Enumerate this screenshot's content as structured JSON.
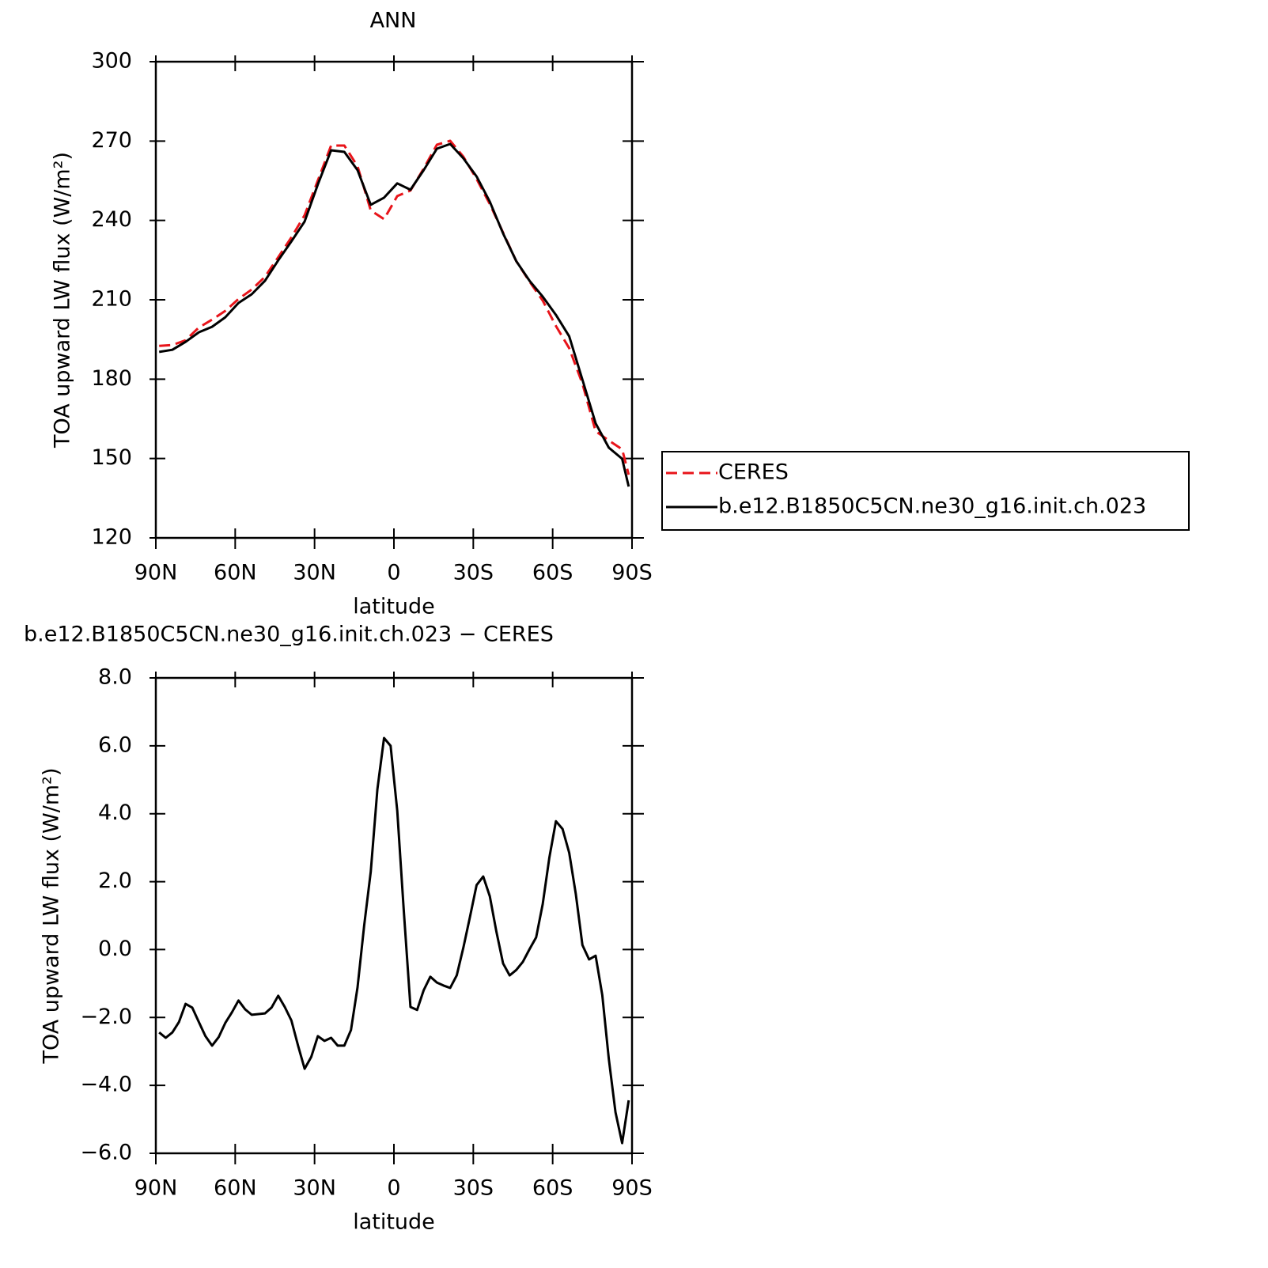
{
  "chart_data": [
    {
      "type": "line",
      "title": "ANN",
      "xlabel": "latitude",
      "ylabel": "TOA upward LW flux (W/m²)",
      "x": [
        88.75,
        83.75,
        78.75,
        73.75,
        68.75,
        63.75,
        58.75,
        53.75,
        48.75,
        43.75,
        38.75,
        33.75,
        28.75,
        23.75,
        18.75,
        13.75,
        8.75,
        3.75,
        -1.25,
        -6.25,
        -11.25,
        -16.25,
        -21.25,
        -26.25,
        -31.25,
        -36.25,
        -41.25,
        -46.25,
        -51.25,
        -56.25,
        -61.25,
        -66.25,
        -71.25,
        -76.25,
        -81.25,
        -86.25,
        -88.75
      ],
      "series": [
        {
          "name": "CERES",
          "color": "#e8141a",
          "dashed": true,
          "values": [
            192.6,
            192.9,
            194.7,
            199.5,
            202.5,
            205.8,
            210.3,
            213.9,
            218.7,
            226.1,
            233.6,
            242,
            255.1,
            268.3,
            268.3,
            260.5,
            243.8,
            240.5,
            249.2,
            251.3,
            259.6,
            268.6,
            270.1,
            264.1,
            255.7,
            246.2,
            235.4,
            224.6,
            216.9,
            209.7,
            200.1,
            191.7,
            178.3,
            160.3,
            156.8,
            153.5,
            143.9
          ]
        },
        {
          "name": "b.e12.B1850C5CN.ne30_g16.init.ch.023",
          "color": "#000000",
          "dashed": false,
          "values": [
            190.3,
            191.1,
            194.1,
            197.7,
            199.8,
            203.4,
            208.8,
            212.1,
            217.2,
            224.9,
            232.1,
            239.6,
            253.6,
            266.5,
            265.9,
            259,
            245.9,
            248.6,
            254,
            251.6,
            259,
            267.1,
            268.9,
            263.5,
            256.6,
            247.1,
            235.1,
            224.6,
            217.2,
            211.2,
            204.3,
            196.2,
            179.8,
            163.3,
            154.1,
            149.9,
            139.4
          ]
        }
      ],
      "xlim": [
        90,
        -90
      ],
      "xticks": [
        {
          "value": 90,
          "label": "90N"
        },
        {
          "value": 60,
          "label": "60N"
        },
        {
          "value": 30,
          "label": "30N"
        },
        0,
        {
          "value": -30,
          "label": "30S"
        },
        {
          "value": -60,
          "label": "60S"
        },
        {
          "value": -90,
          "label": "90S"
        }
      ],
      "ylim": [
        120,
        300
      ],
      "yticks": [
        120,
        150,
        180,
        210,
        240,
        270,
        300
      ]
    },
    {
      "type": "line",
      "title": "b.e12.B1850C5CN.ne30_g16.init.ch.023 − CERES",
      "xlabel": "latitude",
      "ylabel": "TOA upward LW flux (W/m²)",
      "x": [
        88.75,
        86.25,
        83.75,
        81.25,
        78.75,
        76.25,
        73.75,
        71.25,
        68.75,
        66.25,
        63.75,
        61.25,
        58.75,
        56.25,
        53.75,
        51.25,
        48.75,
        46.25,
        43.75,
        41.25,
        38.75,
        36.25,
        33.75,
        31.25,
        28.75,
        26.25,
        23.75,
        21.25,
        18.75,
        16.25,
        13.75,
        11.25,
        8.75,
        6.25,
        3.75,
        1.25,
        -1.25,
        -3.75,
        -6.25,
        -8.75,
        -11.25,
        -13.75,
        -16.25,
        -18.75,
        -21.25,
        -23.75,
        -26.25,
        -28.75,
        -31.25,
        -33.75,
        -36.25,
        -38.75,
        -41.25,
        -43.75,
        -46.25,
        -48.75,
        -51.25,
        -53.75,
        -56.25,
        -58.75,
        -61.25,
        -63.75,
        -66.25,
        -68.75,
        -71.25,
        -73.75,
        -76.25,
        -78.75,
        -81.25,
        -83.75,
        -86.25,
        -88.75
      ],
      "values": [
        -2.44,
        -2.6,
        -2.44,
        -2.13,
        -1.6,
        -1.71,
        -2.13,
        -2.55,
        -2.83,
        -2.58,
        -2.16,
        -1.85,
        -1.5,
        -1.76,
        -1.92,
        -1.9,
        -1.88,
        -1.71,
        -1.36,
        -1.69,
        -2.09,
        -2.83,
        -3.51,
        -3.16,
        -2.55,
        -2.69,
        -2.6,
        -2.83,
        -2.83,
        -2.37,
        -1.11,
        0.71,
        2.29,
        4.72,
        6.23,
        6,
        4.09,
        1.13,
        -1.69,
        -1.78,
        -1.2,
        -0.8,
        -0.97,
        -1.06,
        -1.13,
        -0.76,
        0.06,
        0.97,
        1.9,
        2.15,
        1.57,
        0.52,
        -0.41,
        -0.76,
        -0.6,
        -0.36,
        0.01,
        0.36,
        1.34,
        2.71,
        3.78,
        3.55,
        2.85,
        1.64,
        0.13,
        -0.29,
        -0.18,
        -1.34,
        -3.23,
        -4.79,
        -5.7,
        -4.44
      ],
      "color": "#000000",
      "xlim": [
        90,
        -90
      ],
      "xticks": [
        {
          "value": 90,
          "label": "90N"
        },
        {
          "value": 60,
          "label": "60N"
        },
        {
          "value": 30,
          "label": "30N"
        },
        0,
        {
          "value": -30,
          "label": "30S"
        },
        {
          "value": -60,
          "label": "60S"
        },
        {
          "value": -90,
          "label": "90S"
        }
      ],
      "ylim": [
        -6,
        8
      ],
      "yticks": [
        {
          "value": -6,
          "label": "−6.0"
        },
        {
          "value": -4,
          "label": "−4.0"
        },
        {
          "value": -2,
          "label": "−2.0"
        },
        {
          "value": 0,
          "label": "0.0"
        },
        {
          "value": 2,
          "label": "2.0"
        },
        {
          "value": 4,
          "label": "4.0"
        },
        {
          "value": 6,
          "label": "6.0"
        },
        {
          "value": 8,
          "label": "8.0"
        }
      ]
    }
  ]
}
